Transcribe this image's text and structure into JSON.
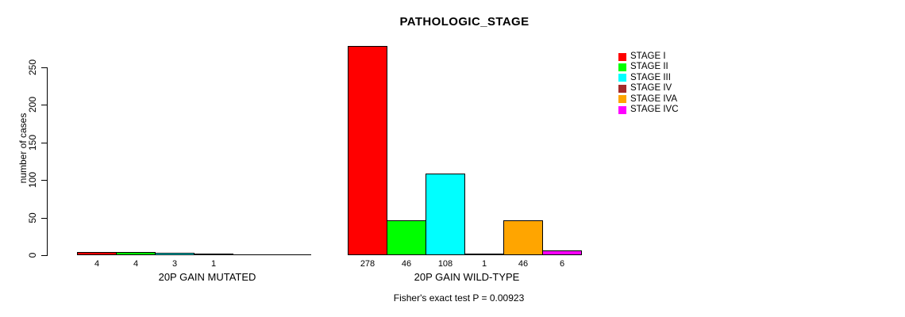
{
  "title": "PATHOLOGIC_STAGE",
  "y_axis": {
    "label": "number of cases"
  },
  "footer": "Fisher's exact test P = 0.00923",
  "legend": {
    "entries": [
      {
        "label": "STAGE I",
        "color": "#FF0000"
      },
      {
        "label": "STAGE II",
        "color": "#00FF00"
      },
      {
        "label": "STAGE III",
        "color": "#00FFFF"
      },
      {
        "label": "STAGE IV",
        "color": "#A52A2A"
      },
      {
        "label": "STAGE IVA",
        "color": "#FFA500"
      },
      {
        "label": "STAGE IVC",
        "color": "#FF00FF"
      }
    ]
  },
  "chart_data": {
    "type": "bar",
    "title": "PATHOLOGIC_STAGE",
    "xlabel": "",
    "ylabel": "number of cases",
    "ylim": [
      0,
      250
    ],
    "yticks": [
      0,
      50,
      100,
      150,
      200,
      250
    ],
    "grid": false,
    "legend_position": "right",
    "series_labels": [
      "STAGE I",
      "STAGE II",
      "STAGE III",
      "STAGE IV",
      "STAGE IVA",
      "STAGE IVC"
    ],
    "colors": [
      "#FF0000",
      "#00FF00",
      "#00FFFF",
      "#A52A2A",
      "#FFA500",
      "#FF00FF"
    ],
    "groups": [
      {
        "label": "20P GAIN MUTATED",
        "values": [
          4,
          4,
          3,
          1,
          0,
          0
        ]
      },
      {
        "label": "20P GAIN WILD-TYPE",
        "values": [
          278,
          46,
          108,
          1,
          46,
          6
        ]
      }
    ],
    "annotation": "Fisher's exact test P = 0.00923"
  }
}
